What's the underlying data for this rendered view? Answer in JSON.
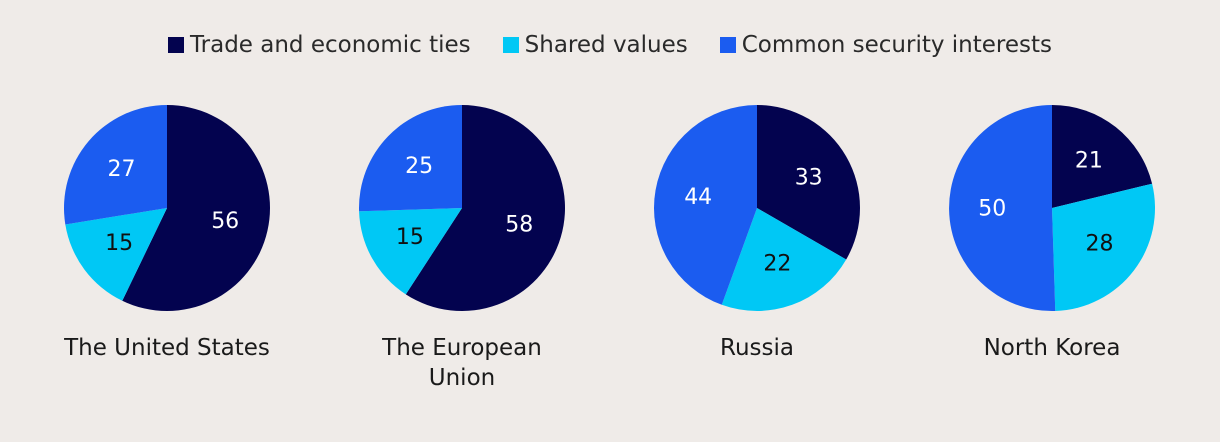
{
  "chart_data": {
    "type": "pie",
    "legend": [
      {
        "name": "Trade and economic ties",
        "color": "#03034f"
      },
      {
        "name": "Shared values",
        "color": "#00c8f5"
      },
      {
        "name": "Common security interests",
        "color": "#1b5cf0"
      }
    ],
    "legend_position": "top-center",
    "charts": [
      {
        "label": "The United States",
        "slices": [
          {
            "series": "Trade and economic ties",
            "value": 56
          },
          {
            "series": "Shared values",
            "value": 15
          },
          {
            "series": "Common security interests",
            "value": 27
          }
        ]
      },
      {
        "label": "The European Union",
        "slices": [
          {
            "series": "Trade and economic ties",
            "value": 58
          },
          {
            "series": "Shared values",
            "value": 15
          },
          {
            "series": "Common security interests",
            "value": 25
          }
        ]
      },
      {
        "label": "Russia",
        "slices": [
          {
            "series": "Trade and economic ties",
            "value": 33
          },
          {
            "series": "Shared values",
            "value": 22
          },
          {
            "series": "Common security interests",
            "value": 44
          }
        ]
      },
      {
        "label": "North Korea",
        "slices": [
          {
            "series": "Trade and economic ties",
            "value": 21
          },
          {
            "series": "Shared values",
            "value": 28
          },
          {
            "series": "Common security interests",
            "value": 50
          }
        ]
      }
    ]
  }
}
